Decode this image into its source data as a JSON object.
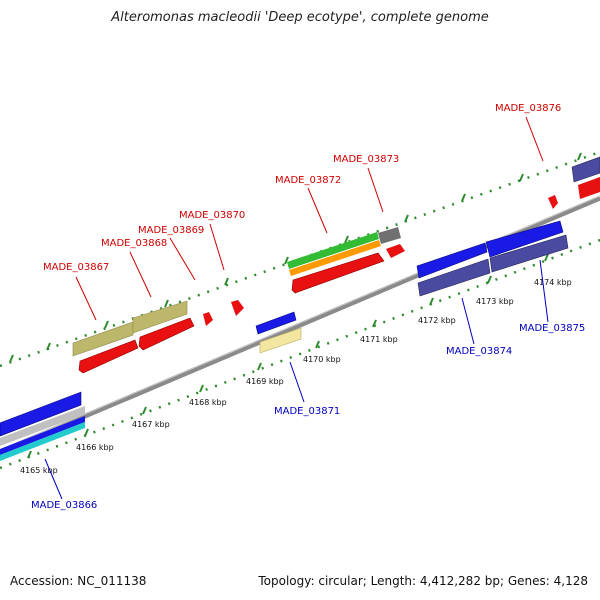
{
  "title": "Alteromonas macleodii 'Deep ecotype', complete genome",
  "accession_label": "Accession: NC_011138",
  "topology_label": "Topology: circular; Length: 4,412,282 bp; Genes: 4,128",
  "colors": {
    "backbone": "#8a8a8a",
    "dots": "#2e8b2e",
    "forward_label": "#d00000",
    "reverse_label": "#0000c0",
    "red": "#e81010",
    "olive": "#bdb76b",
    "blue": "#1a1ae6",
    "navy": "#4a4aa0",
    "yellow": "#f2e6a0",
    "green": "#33bb33",
    "orange": "#ff9900",
    "gray": "#707070",
    "cyan": "#22cccc"
  },
  "kbp_ticks": [
    {
      "label": "4165 kbp"
    },
    {
      "label": "4166 kbp"
    },
    {
      "label": "4167 kbp"
    },
    {
      "label": "4168 kbp"
    },
    {
      "label": "4169 kbp"
    },
    {
      "label": "4170 kbp"
    },
    {
      "label": "4171 kbp"
    },
    {
      "label": "4172 kbp"
    },
    {
      "label": "4173 kbp"
    },
    {
      "label": "4174 kbp"
    }
  ],
  "forward_labels": [
    {
      "name": "MADE_03867"
    },
    {
      "name": "MADE_03868"
    },
    {
      "name": "MADE_03869"
    },
    {
      "name": "MADE_03870"
    },
    {
      "name": "MADE_03872"
    },
    {
      "name": "MADE_03873"
    },
    {
      "name": "MADE_03876"
    }
  ],
  "reverse_labels": [
    {
      "name": "MADE_03866"
    },
    {
      "name": "MADE_03871"
    },
    {
      "name": "MADE_03874"
    },
    {
      "name": "MADE_03875"
    }
  ]
}
